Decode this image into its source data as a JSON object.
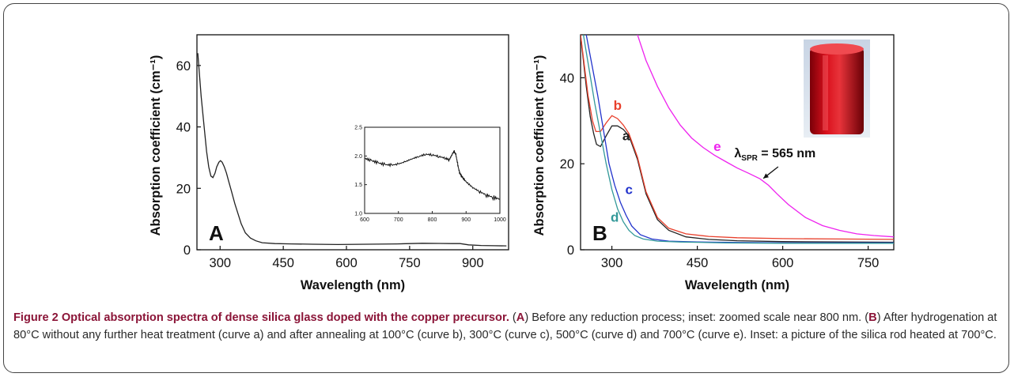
{
  "chart_data": [
    {
      "type": "line",
      "panel_label": "A",
      "xlabel": "Wavelength (nm)",
      "ylabel": "Absorption coefficient (cm⁻¹)",
      "xlim": [
        245,
        985
      ],
      "ylim": [
        0,
        70
      ],
      "xticks": [
        300,
        450,
        600,
        750,
        900
      ],
      "yticks": [
        0,
        20,
        40,
        60
      ],
      "series": [
        {
          "color": "#222222",
          "x": [
            247,
            255,
            262,
            268,
            273,
            278,
            283,
            288,
            292,
            297,
            301,
            305,
            310,
            315,
            320,
            327,
            335,
            343,
            350,
            360,
            372,
            385,
            400,
            430,
            470,
            520,
            580,
            650,
            720,
            780,
            820,
            850,
            870,
            890,
            920,
            950,
            980
          ],
          "y": [
            64,
            50,
            40,
            32,
            27,
            24,
            23.5,
            25,
            27,
            28.5,
            29,
            28.5,
            27,
            25,
            22.5,
            19,
            15,
            11.5,
            8.5,
            5.5,
            3.8,
            2.9,
            2.3,
            2.0,
            1.9,
            1.8,
            1.7,
            1.8,
            1.9,
            2.1,
            2.05,
            2.0,
            2.0,
            1.6,
            1.4,
            1.3,
            1.25
          ]
        }
      ],
      "inset": {
        "xlim": [
          600,
          1000
        ],
        "ylim": [
          1.0,
          2.5
        ],
        "xticks": [
          600,
          700,
          800,
          900,
          1000
        ],
        "yticks": [
          1.0,
          1.5,
          2.0,
          2.5
        ],
        "x": [
          600,
          620,
          640,
          660,
          680,
          700,
          720,
          740,
          760,
          780,
          800,
          820,
          840,
          850,
          860,
          865,
          870,
          875,
          880,
          885,
          890,
          900,
          920,
          940,
          960,
          980,
          1000
        ],
        "y": [
          1.96,
          1.92,
          1.88,
          1.85,
          1.84,
          1.86,
          1.9,
          1.95,
          1.99,
          2.03,
          2.02,
          1.99,
          1.96,
          1.93,
          2.04,
          2.08,
          2.02,
          1.86,
          1.72,
          1.66,
          1.62,
          1.55,
          1.45,
          1.38,
          1.32,
          1.28,
          1.25
        ]
      }
    },
    {
      "type": "line",
      "panel_label": "B",
      "xlabel": "Wavelength (nm)",
      "ylabel": "Absorption coefficient (cm⁻¹)",
      "xlim": [
        245,
        795
      ],
      "ylim": [
        0,
        50
      ],
      "xticks": [
        300,
        450,
        600,
        750
      ],
      "yticks": [
        0,
        20,
        40
      ],
      "annotation": "λSPR = 565 nm",
      "series": [
        {
          "name": "a",
          "color": "#222222",
          "x": [
            245,
            255,
            262,
            268,
            273,
            280,
            290,
            300,
            310,
            320,
            330,
            345,
            360,
            380,
            400,
            430,
            470,
            520,
            600,
            700,
            795
          ],
          "y": [
            50,
            38,
            31,
            27,
            24.5,
            24,
            26.5,
            28.8,
            28.8,
            28,
            26.5,
            21,
            13,
            7,
            4.5,
            3,
            2.4,
            2.1,
            1.9,
            1.8,
            1.75
          ]
        },
        {
          "name": "b",
          "color": "#e8402c",
          "x": [
            245,
            258,
            266,
            272,
            280,
            290,
            300,
            310,
            320,
            330,
            345,
            360,
            380,
            400,
            430,
            470,
            520,
            600,
            700,
            795
          ],
          "y": [
            50,
            36,
            30,
            27.5,
            27.5,
            29.5,
            31.2,
            30.5,
            29,
            27,
            21.5,
            13.5,
            7.5,
            5,
            3.7,
            3.1,
            2.8,
            2.6,
            2.5,
            2.4
          ]
        },
        {
          "name": "c",
          "color": "#2233cc",
          "x": [
            255,
            265,
            275,
            285,
            295,
            305,
            315,
            325,
            335,
            350,
            370,
            400,
            450,
            520,
            600,
            700,
            795
          ],
          "y": [
            50,
            43,
            36,
            28,
            20,
            15,
            11,
            8,
            5.5,
            3.5,
            2.5,
            2.0,
            1.8,
            1.7,
            1.6,
            1.6,
            1.6
          ]
        },
        {
          "name": "d",
          "color": "#339999",
          "x": [
            250,
            260,
            270,
            280,
            290,
            300,
            310,
            320,
            330,
            340,
            355,
            380,
            420,
            500,
            600,
            700,
            795
          ],
          "y": [
            50,
            42,
            34,
            27,
            20,
            14,
            9.5,
            6.5,
            4.5,
            3.3,
            2.5,
            2.0,
            1.8,
            1.6,
            1.5,
            1.5,
            1.5
          ]
        },
        {
          "name": "e",
          "color": "#ee22ee",
          "x": [
            345,
            360,
            380,
            400,
            420,
            440,
            460,
            480,
            500,
            520,
            540,
            560,
            575,
            590,
            610,
            640,
            670,
            700,
            730,
            760,
            795
          ],
          "y": [
            50,
            44,
            38,
            33,
            29,
            26,
            23.8,
            22,
            20.5,
            19,
            17.8,
            16.5,
            15,
            13,
            10.5,
            7.5,
            5.6,
            4.5,
            3.7,
            3.3,
            3.0
          ]
        }
      ]
    }
  ],
  "caption": {
    "title": "Figure 2 Optical absorption spectra of dense silica glass doped with the copper precursor.",
    "a_label": "A",
    "a_text": "Before any reduction process; inset: zoomed scale near 800 nm.",
    "b_label": "B",
    "b_text": "After hydrogenation at 80°C without any further heat treatment (curve a) and after annealing at 100°C (curve b), 300°C (curve c), 500°C (curve d) and 700°C (curve e). Inset: a picture of the silica rod heated at 700°C."
  }
}
